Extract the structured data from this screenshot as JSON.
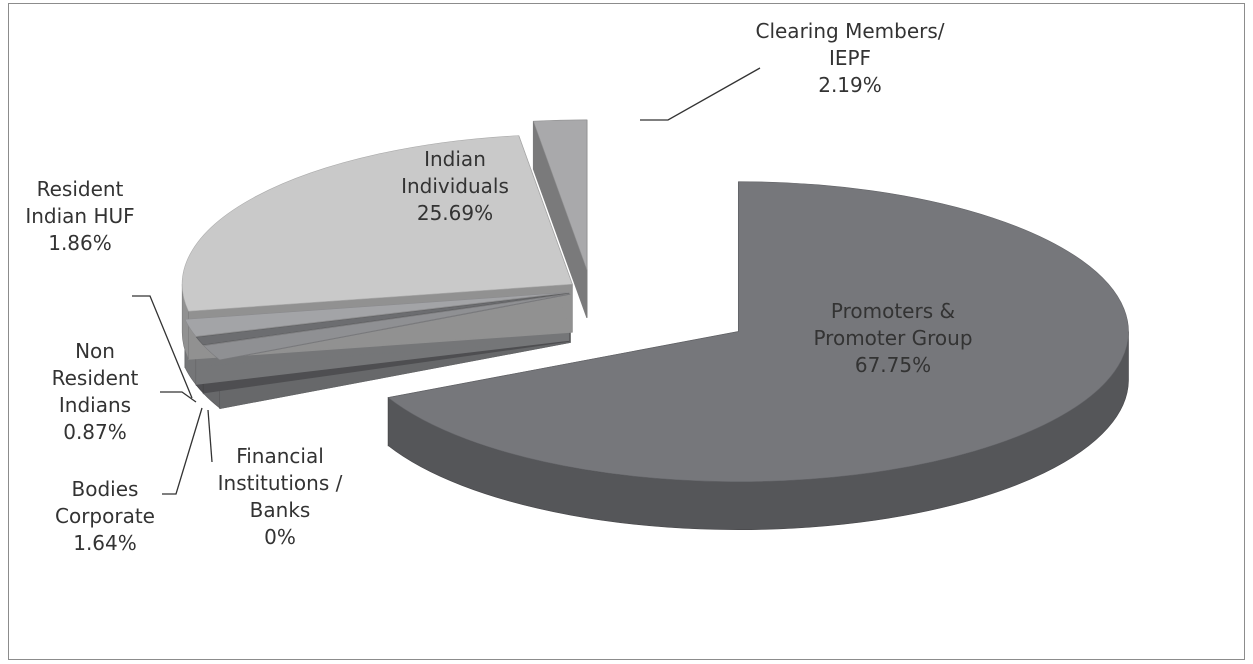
{
  "chart_data": {
    "type": "pie3d",
    "categories": [
      "Promoters & Promoter Group",
      "Financial Institutions / Banks",
      "Bodies Corporate",
      "Non Resident Indians",
      "Resident Indian HUF",
      "Indian Individuals",
      "Clearing Members/ IEPF"
    ],
    "values": [
      67.75,
      0,
      1.64,
      0.87,
      1.86,
      25.69,
      2.19
    ],
    "value_labels": [
      "67.75%",
      "0%",
      "1.64%",
      "0.87%",
      "1.86%",
      "25.69%",
      "2.19%"
    ],
    "colors": [
      "#76777b",
      "#8a8b8e",
      "#8f9093",
      "#6c6d70",
      "#a3a4a7",
      "#c9c9c9",
      "#a9a9ab"
    ]
  }
}
